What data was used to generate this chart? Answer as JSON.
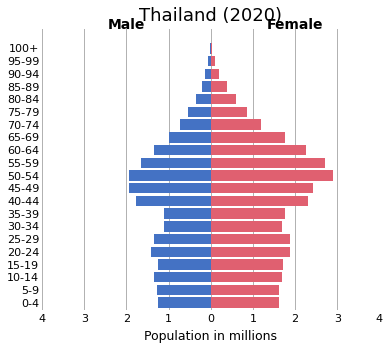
{
  "title": "Thailand (2020)",
  "xlabel": "Population in millions",
  "age_groups": [
    "0-4",
    "5-9",
    "10-14",
    "15-19",
    "20-24",
    "25-29",
    "30-34",
    "35-39",
    "40-44",
    "45-49",
    "50-54",
    "55-59",
    "60-64",
    "65-69",
    "70-74",
    "75-79",
    "80-84",
    "85-89",
    "90-94",
    "95-99",
    "100+"
  ],
  "male": [
    1.25,
    1.28,
    1.35,
    1.25,
    1.42,
    1.35,
    1.1,
    1.1,
    1.78,
    1.93,
    1.93,
    1.65,
    1.35,
    1.0,
    0.73,
    0.53,
    0.36,
    0.22,
    0.13,
    0.06,
    0.02
  ],
  "female": [
    1.62,
    1.62,
    1.68,
    1.72,
    1.88,
    1.88,
    1.7,
    1.75,
    2.3,
    2.43,
    2.9,
    2.7,
    2.25,
    1.75,
    1.2,
    0.85,
    0.6,
    0.38,
    0.2,
    0.1,
    0.04
  ],
  "male_color": "#4472C4",
  "female_color": "#E06070",
  "male_label": "Male",
  "female_label": "Female",
  "xlim": 4,
  "background_color": "#ffffff",
  "grid_color": "#b0b0b0",
  "title_fontsize": 13,
  "axis_label_fontsize": 9,
  "tick_fontsize": 8,
  "gender_label_fontsize": 10
}
